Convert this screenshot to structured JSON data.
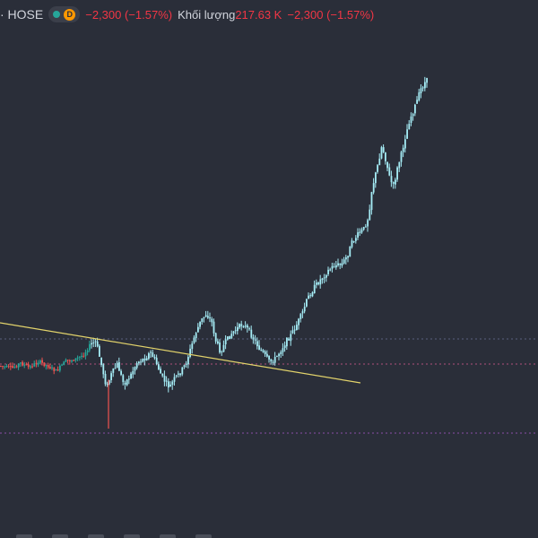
{
  "header": {
    "symbol": "· HOSE",
    "change": "−2,300 (−1.57%)",
    "volume_label": "Khối lượng",
    "volume_value": "217.63 K",
    "volume_change": "−2,300 (−1.57%)",
    "status_color": "#26a69a",
    "d_badge": "D",
    "d_badge_color": "#ff9800"
  },
  "colors": {
    "background": "#2a2e39",
    "candle_up": "#a5ecf5",
    "candle_down": "#a5ecf5",
    "early_up": "#26a69a",
    "early_down": "#ef5350",
    "trendline": "#e2d36b",
    "hline_upper": "#5b6080",
    "hline_mid": "#b0507a",
    "hline_low": "#8a4fa8"
  },
  "chart_data": {
    "type": "candlestick",
    "title": "",
    "xlabel": "",
    "ylabel": "",
    "ylim": [
      0,
      600
    ],
    "path_points": [
      [
        0,
        408
      ],
      [
        12,
        411
      ],
      [
        22,
        405
      ],
      [
        32,
        410
      ],
      [
        42,
        403
      ],
      [
        52,
        408
      ],
      [
        62,
        414
      ],
      [
        72,
        403
      ],
      [
        82,
        401
      ],
      [
        92,
        396
      ],
      [
        100,
        384
      ],
      [
        106,
        381
      ],
      [
        112,
        406
      ],
      [
        118,
        432
      ],
      [
        123,
        418
      ],
      [
        130,
        406
      ],
      [
        137,
        428
      ],
      [
        144,
        420
      ],
      [
        152,
        404
      ],
      [
        160,
        400
      ],
      [
        167,
        393
      ],
      [
        173,
        404
      ],
      [
        180,
        421
      ],
      [
        188,
        432
      ],
      [
        194,
        422
      ],
      [
        200,
        416
      ],
      [
        206,
        406
      ],
      [
        212,
        388
      ],
      [
        217,
        372
      ],
      [
        223,
        358
      ],
      [
        229,
        350
      ],
      [
        235,
        358
      ],
      [
        240,
        381
      ],
      [
        245,
        392
      ],
      [
        251,
        381
      ],
      [
        258,
        371
      ],
      [
        264,
        366
      ],
      [
        270,
        361
      ],
      [
        276,
        368
      ],
      [
        282,
        378
      ],
      [
        288,
        388
      ],
      [
        294,
        396
      ],
      [
        300,
        404
      ],
      [
        306,
        400
      ],
      [
        312,
        391
      ],
      [
        318,
        381
      ],
      [
        324,
        373
      ],
      [
        330,
        362
      ],
      [
        336,
        350
      ],
      [
        342,
        333
      ],
      [
        350,
        320
      ],
      [
        358,
        310
      ],
      [
        365,
        302
      ],
      [
        372,
        296
      ],
      [
        380,
        295
      ],
      [
        386,
        286
      ],
      [
        392,
        270
      ],
      [
        398,
        262
      ],
      [
        405,
        255
      ],
      [
        410,
        242
      ],
      [
        414,
        210
      ],
      [
        420,
        186
      ],
      [
        425,
        162
      ],
      [
        430,
        181
      ],
      [
        434,
        200
      ],
      [
        438,
        208
      ],
      [
        442,
        189
      ],
      [
        447,
        171
      ],
      [
        451,
        153
      ],
      [
        456,
        133
      ],
      [
        460,
        124
      ],
      [
        465,
        110
      ],
      [
        469,
        98
      ],
      [
        473,
        92
      ],
      [
        476,
        89
      ]
    ],
    "early_zone_end": 100,
    "spike_low": [
      121,
      478
    ],
    "trendline": {
      "from": [
        0,
        360
      ],
      "to": [
        402,
        427
      ]
    },
    "hlines": [
      {
        "y": 378,
        "style": "upper"
      },
      {
        "y": 406,
        "style": "mid"
      },
      {
        "y": 483,
        "style": "low"
      }
    ]
  }
}
